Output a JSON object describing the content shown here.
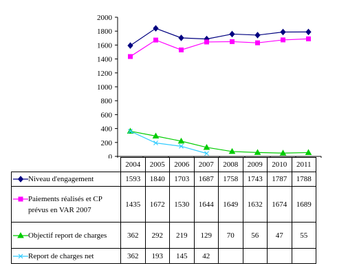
{
  "chart_data": {
    "type": "line",
    "categories": [
      "2004",
      "2005",
      "2006",
      "2007",
      "2008",
      "2009",
      "2010",
      "2011"
    ],
    "ylim": [
      0,
      2000
    ],
    "yticks": [
      0,
      200,
      400,
      600,
      800,
      1000,
      1200,
      1400,
      1600,
      1800,
      2000
    ],
    "grid": false,
    "legend_position": "table-left",
    "series": [
      {
        "name": "Niveau d'engagement",
        "color": "#000080",
        "marker": "diamond",
        "values": [
          1593,
          1840,
          1703,
          1687,
          1758,
          1743,
          1787,
          1788
        ]
      },
      {
        "name": "Paiements réalisés et CP prévus en VAR 2007",
        "color": "#FF00FF",
        "marker": "square",
        "values": [
          1435,
          1672,
          1530,
          1644,
          1649,
          1632,
          1674,
          1689
        ]
      },
      {
        "name": "Objectif report de charges",
        "color": "#00CC00",
        "marker": "triangle",
        "values": [
          362,
          292,
          219,
          129,
          70,
          56,
          47,
          55
        ]
      },
      {
        "name": "Report de charges net",
        "color": "#33CCFF",
        "marker": "x",
        "values": [
          362,
          193,
          145,
          42,
          null,
          null,
          null,
          null
        ]
      }
    ]
  }
}
